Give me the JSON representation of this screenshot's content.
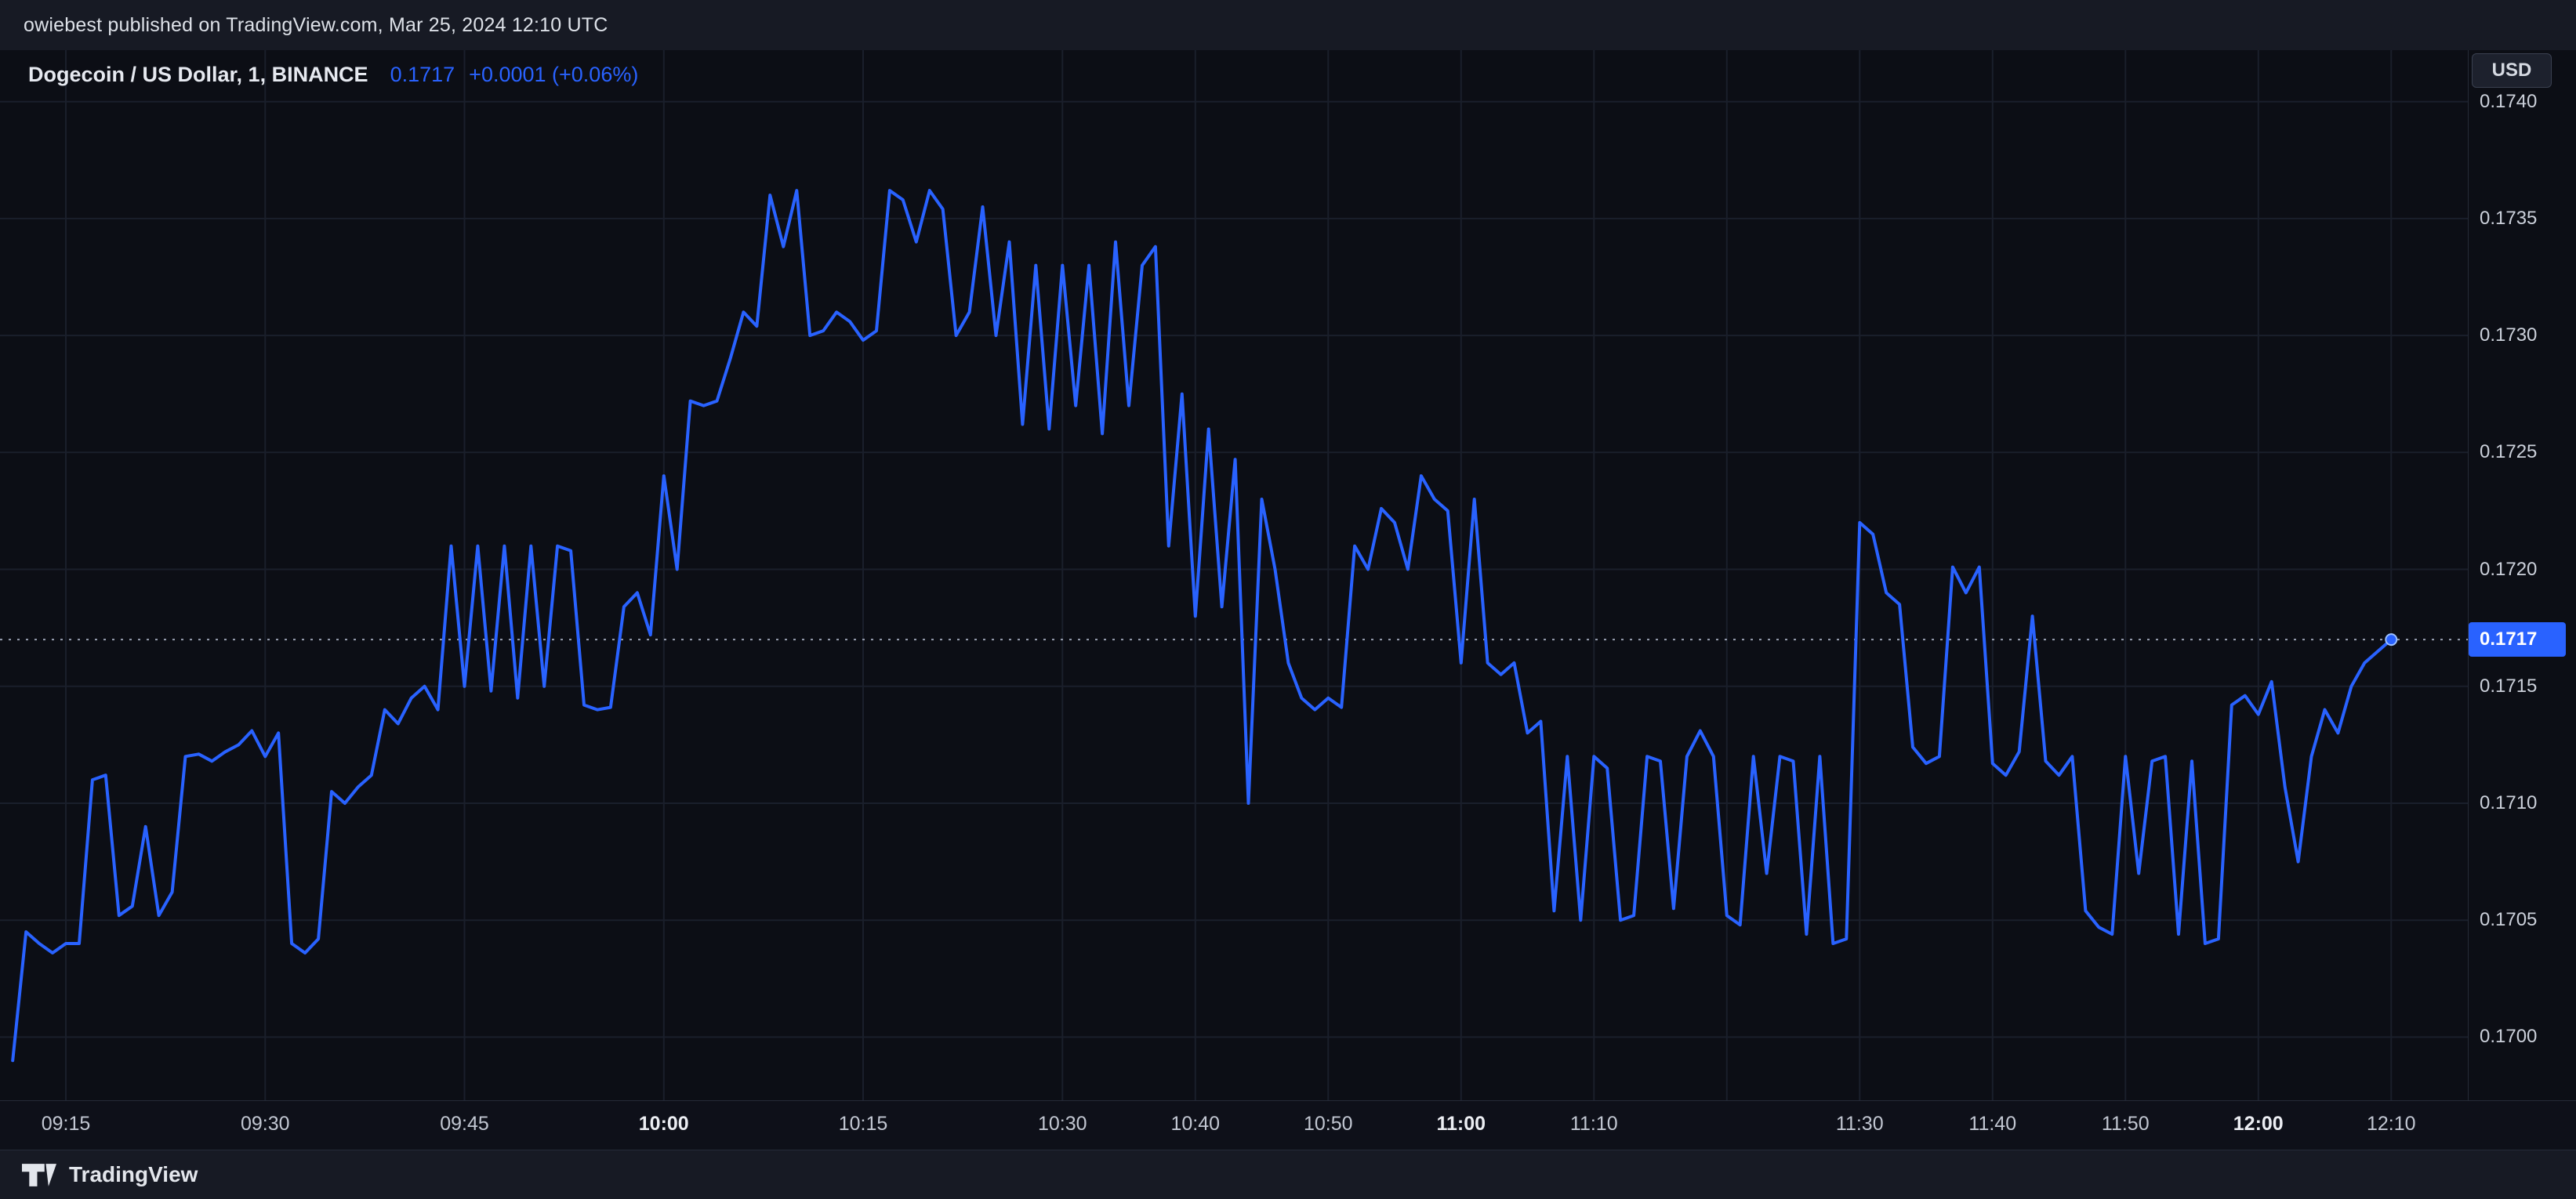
{
  "attribution": {
    "text": "owiebest published on TradingView.com, Mar 25, 2024 12:10 UTC"
  },
  "header": {
    "symbol_title": "Dogecoin / US Dollar, 1, BINANCE",
    "price": "0.1717",
    "change": "+0.0001 (+0.06%)"
  },
  "axis": {
    "currency_button": "USD",
    "last_price_label": "0.1717",
    "price_labels": [
      "0.1740",
      "0.1735",
      "0.1730",
      "0.1725",
      "0.1720",
      "0.1715",
      "0.1710",
      "0.1705",
      "0.1700"
    ],
    "time_labels": [
      {
        "label": "09:15",
        "minute": 15,
        "bold": false
      },
      {
        "label": "09:30",
        "minute": 30,
        "bold": false
      },
      {
        "label": "09:45",
        "minute": 45,
        "bold": false
      },
      {
        "label": "10:00",
        "minute": 60,
        "bold": true
      },
      {
        "label": "10:15",
        "minute": 75,
        "bold": false
      },
      {
        "label": "10:30",
        "minute": 90,
        "bold": false
      },
      {
        "label": "10:40",
        "minute": 100,
        "bold": false
      },
      {
        "label": "10:50",
        "minute": 110,
        "bold": false
      },
      {
        "label": "11:00",
        "minute": 120,
        "bold": true
      },
      {
        "label": "11:10",
        "minute": 130,
        "bold": false
      },
      {
        "label": "",
        "minute": 140,
        "bold": false
      },
      {
        "label": "11:30",
        "minute": 150,
        "bold": false
      },
      {
        "label": "11:40",
        "minute": 160,
        "bold": false
      },
      {
        "label": "11:50",
        "minute": 170,
        "bold": false
      },
      {
        "label": "12:00",
        "minute": 180,
        "bold": true
      },
      {
        "label": "12:10",
        "minute": 190,
        "bold": false
      }
    ]
  },
  "footer": {
    "brand": "TradingView"
  },
  "colors": {
    "accent": "#2962ff",
    "chart_background": "#0c0e15",
    "panel_background": "#171a24",
    "price_label_background": "#2962ff",
    "flash_icon_gradient": [
      "#7a5cff",
      "#e53fd0"
    ],
    "notification_dot": "#f23645"
  },
  "chart_data": {
    "type": "line",
    "title": "Dogecoin / US Dollar, 1, BINANCE",
    "symbol": "Dogecoin / US Dollar",
    "exchange": "BINANCE",
    "interval": "1",
    "x_start": "09:11",
    "x_end": "12:10",
    "x_interval_minutes": 1,
    "ylim": [
      0.16973,
      0.17422
    ],
    "y_ticks": [
      0.17,
      0.1705,
      0.171,
      0.1715,
      0.172,
      0.1725,
      0.173,
      0.1735,
      0.174
    ],
    "last_price": 0.1717,
    "grid": true,
    "legend_position": "top-left",
    "prices": [
      0.1699,
      0.17045,
      0.1704,
      0.17036,
      0.1704,
      0.1704,
      0.1711,
      0.17112,
      0.17052,
      0.17056,
      0.1709,
      0.17052,
      0.17062,
      0.1712,
      0.17121,
      0.17118,
      0.17122,
      0.17125,
      0.17131,
      0.1712,
      0.1713,
      0.1704,
      0.17036,
      0.17042,
      0.17105,
      0.171,
      0.17107,
      0.17112,
      0.1714,
      0.17134,
      0.17145,
      0.1715,
      0.1714,
      0.1721,
      0.1715,
      0.1721,
      0.17148,
      0.1721,
      0.17145,
      0.1721,
      0.1715,
      0.1721,
      0.17208,
      0.17142,
      0.1714,
      0.17141,
      0.17184,
      0.1719,
      0.17172,
      0.1724,
      0.172,
      0.17272,
      0.1727,
      0.17272,
      0.1729,
      0.1731,
      0.17304,
      0.1736,
      0.17338,
      0.17362,
      0.173,
      0.17302,
      0.1731,
      0.17306,
      0.17298,
      0.17302,
      0.17362,
      0.17358,
      0.1734,
      0.17362,
      0.17354,
      0.173,
      0.1731,
      0.17355,
      0.173,
      0.1734,
      0.17262,
      0.1733,
      0.1726,
      0.1733,
      0.1727,
      0.1733,
      0.17258,
      0.1734,
      0.1727,
      0.1733,
      0.17338,
      0.1721,
      0.17275,
      0.1718,
      0.1726,
      0.17184,
      0.17247,
      0.171,
      0.1723,
      0.172,
      0.1716,
      0.17145,
      0.1714,
      0.17145,
      0.17141,
      0.1721,
      0.172,
      0.17226,
      0.1722,
      0.172,
      0.1724,
      0.1723,
      0.17225,
      0.1716,
      0.1723,
      0.1716,
      0.17155,
      0.1716,
      0.1713,
      0.17135,
      0.17054,
      0.1712,
      0.1705,
      0.1712,
      0.17115,
      0.1705,
      0.17052,
      0.1712,
      0.17118,
      0.17055,
      0.1712,
      0.17131,
      0.1712,
      0.17052,
      0.17048,
      0.1712,
      0.1707,
      0.1712,
      0.17118,
      0.17044,
      0.1712,
      0.1704,
      0.17042,
      0.1722,
      0.17215,
      0.1719,
      0.17185,
      0.17124,
      0.17117,
      0.1712,
      0.17201,
      0.1719,
      0.17201,
      0.17117,
      0.17112,
      0.17122,
      0.1718,
      0.17118,
      0.17112,
      0.1712,
      0.17054,
      0.17047,
      0.17044,
      0.1712,
      0.1707,
      0.17118,
      0.1712,
      0.17044,
      0.17118,
      0.1704,
      0.17042,
      0.17142,
      0.17146,
      0.17138,
      0.17152,
      0.17107,
      0.17075,
      0.1712,
      0.1714,
      0.1713,
      0.1715,
      0.1716,
      0.17165,
      0.1717
    ]
  }
}
